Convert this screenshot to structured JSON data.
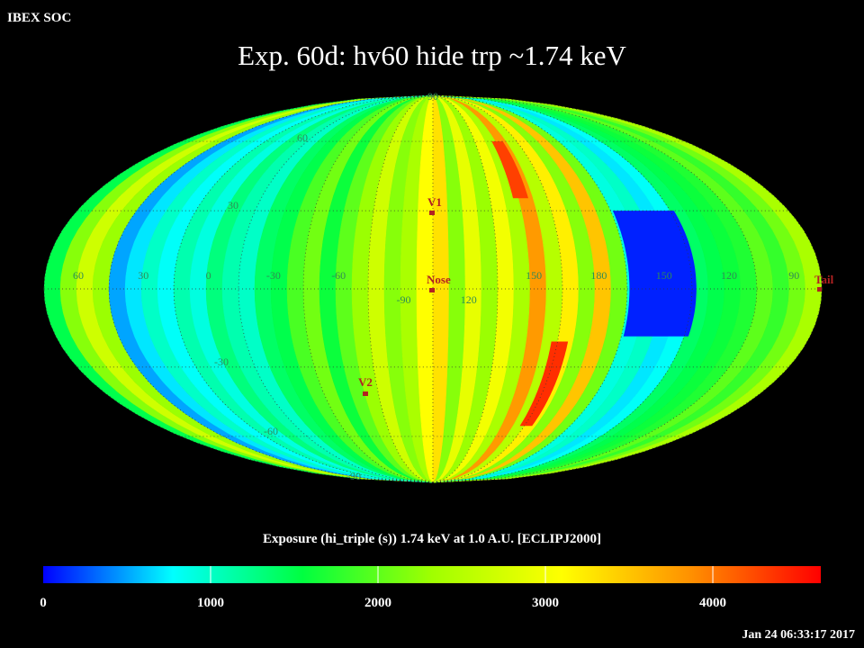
{
  "header": {
    "label": "IBEX SOC"
  },
  "chart_data": {
    "type": "skymap",
    "title": "Exp.   60d: hv60 hide trp ~1.74 keV",
    "colorbar_label": "Exposure (hi_triple (s))  1.74 keV at 1.0 A.U. [ECLIPJ2000]",
    "timestamp": "Jan 24 06:33:17 2017",
    "center_lon": 255,
    "clim": [
      0,
      4645
    ],
    "cticks": [
      0,
      1000,
      2000,
      3000,
      4000
    ],
    "colormap": [
      "#0000ff",
      "#00ffff",
      "#00ff40",
      "#a0ff00",
      "#ffff00",
      "#ff9000",
      "#ff0000"
    ],
    "lon_labels": [
      "60",
      "30",
      "0",
      "-30",
      "-60",
      "-90",
      "120",
      "150",
      "180",
      "150",
      "120",
      "90"
    ],
    "lat_labels": [
      "90",
      "60",
      "30",
      "-30",
      "-60",
      "-90"
    ],
    "annotations": [
      "V1",
      "Nose",
      "V2",
      "Tail"
    ],
    "stripes": [
      1500,
      2200,
      2700,
      2300,
      500,
      700,
      1000,
      800,
      1100,
      900,
      1300,
      1100,
      1000,
      1400,
      1500,
      1900,
      2100,
      1600,
      2000,
      2300,
      2700,
      2200,
      2400,
      3100,
      3300,
      2200,
      2900,
      2300,
      3000,
      2400,
      3800,
      2500,
      3200,
      2200,
      3500,
      2100,
      900,
      1000,
      700,
      800,
      1400,
      1500,
      1600,
      1700,
      2000,
      1800,
      2100,
      2400
    ],
    "patches": [
      {
        "lon": [
          133,
          164
        ],
        "lat": [
          -18,
          30
        ],
        "value": 100
      },
      {
        "lon": [
          190,
          198
        ],
        "lat": [
          -55,
          -20
        ],
        "value": 4400
      },
      {
        "lon": [
          205,
          213
        ],
        "lat": [
          35,
          60
        ],
        "value": 4300
      }
    ]
  }
}
